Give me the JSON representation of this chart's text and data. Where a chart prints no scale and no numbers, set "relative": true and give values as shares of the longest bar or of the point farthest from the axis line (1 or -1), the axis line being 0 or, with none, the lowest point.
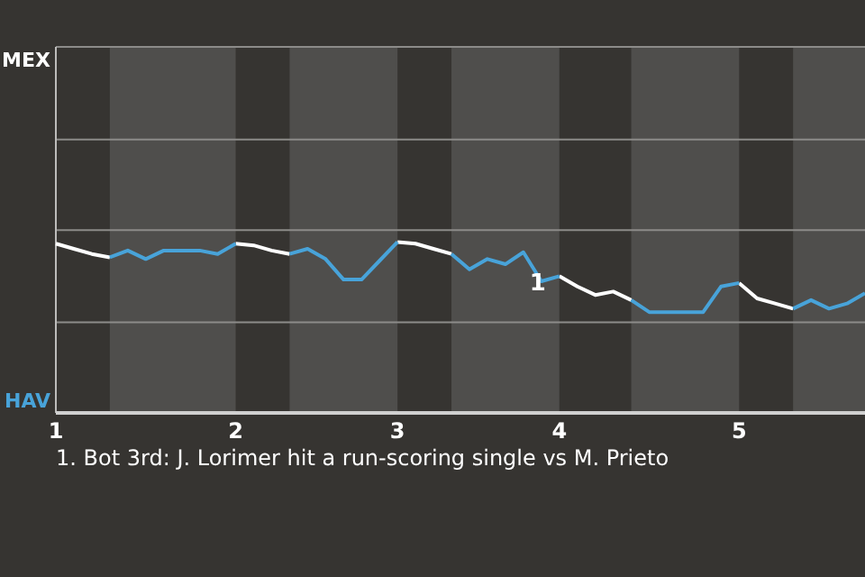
{
  "chart_data": {
    "type": "line",
    "relative": true,
    "categories": [
      "1",
      null,
      null,
      null,
      null,
      null,
      null,
      null,
      null,
      null,
      "2",
      null,
      null,
      null,
      null,
      null,
      null,
      null,
      null,
      "3",
      null,
      null,
      null,
      null,
      null,
      null,
      null,
      null,
      "4",
      null,
      null,
      null,
      null,
      null,
      null,
      null,
      null,
      null,
      "5",
      null,
      null,
      null,
      null,
      null,
      null,
      null
    ],
    "series": [
      {
        "color": "#ffffff",
        "values": [
          0.99,
          0.96,
          0.93,
          0.91,
          null,
          null,
          null,
          null,
          null,
          null,
          0.99,
          0.98,
          0.95,
          0.93,
          null,
          null,
          null,
          null,
          null,
          1,
          0.99,
          0.96,
          0.93,
          null,
          null,
          null,
          null,
          null,
          0.8,
          0.74,
          0.69,
          0.71,
          0.66,
          null,
          null,
          null,
          null,
          null,
          0.76,
          0.67,
          0.64,
          0.61,
          null,
          null,
          null,
          null
        ]
      },
      {
        "color": "#48a3d9",
        "values": [
          null,
          null,
          null,
          0.91,
          0.95,
          0.9,
          0.95,
          0.95,
          0.95,
          0.93,
          0.99,
          null,
          null,
          0.93,
          0.96,
          0.9,
          0.78,
          0.78,
          0.89,
          1,
          null,
          null,
          0.93,
          0.84,
          0.9,
          0.87,
          0.94,
          0.77,
          0.8,
          null,
          null,
          null,
          0.66,
          0.59,
          0.59,
          0.59,
          0.59,
          0.74,
          0.76,
          null,
          null,
          0.61,
          0.66,
          0.61,
          0.64,
          0.7
        ]
      }
    ],
    "ref_lines": [
      {
        "axis": "y",
        "value": 0.53,
        "color": "#8c8b89"
      },
      {
        "axis": "y",
        "value": 1.07,
        "color": "#8c8b89"
      },
      {
        "axis": "y",
        "value": 1.6,
        "color": "#8c8b89"
      }
    ],
    "annotations": [
      "MEX",
      "HAV",
      {
        "text": "1",
        "y": 0.77
      },
      "1. Bot 3rd: J. Lorimer hit a run-scoring single vs M. Prieto"
    ]
  }
}
